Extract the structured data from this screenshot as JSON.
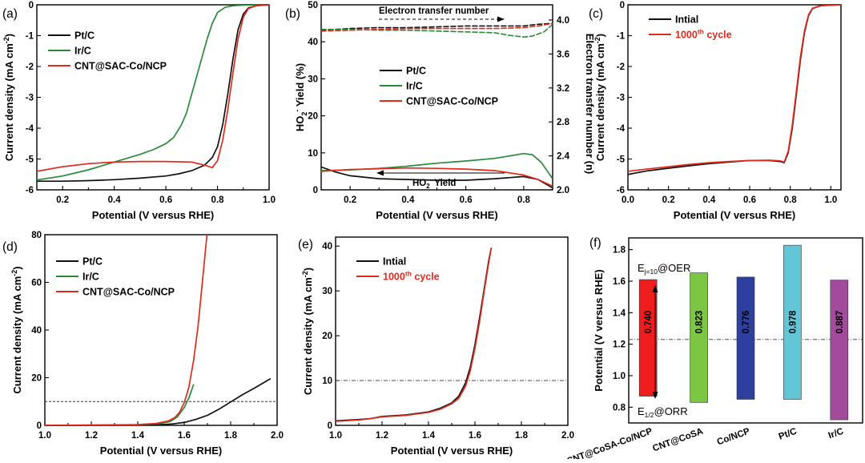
{
  "colors": {
    "pt": "#111111",
    "ir": "#2a8a3a",
    "cnt": "#e02a1e",
    "initial": "#111111",
    "cycle": "#e02a1e",
    "bar_cnt_cosa_conp": "#ef1d1d",
    "bar_cnt_cosa": "#7cc644",
    "bar_co_ncp": "#2f3f9e",
    "bar_pt": "#62c6d6",
    "bar_ir": "#a24a9c"
  },
  "chart_data": [
    {
      "id": "a",
      "panel_label": "(a)",
      "type": "line",
      "xlabel": "Potential (V versus RHE)",
      "ylabel_main": "Current density (mA cm",
      "ylabel_sup": "-2",
      "ylabel_end": ")",
      "xlim": [
        0.1,
        1.0
      ],
      "ylim": [
        -6,
        0
      ],
      "xticks": [
        0.2,
        0.4,
        0.6,
        0.8,
        1.0
      ],
      "xtick_labels": [
        "0.2",
        "0.4",
        "0.6",
        "0.8",
        "1.0"
      ],
      "yticks": [
        0,
        -1,
        -2,
        -3,
        -4,
        -5,
        -6
      ],
      "ytick_labels": [
        "0",
        "-1",
        "-2",
        "-3",
        "-4",
        "-5",
        "-6"
      ],
      "legend": [
        "Pt/C",
        "Ir/C",
        "CNT@SAC-Co/NCP"
      ],
      "series": [
        {
          "name": "Pt/C",
          "color": "pt",
          "x": [
            0.1,
            0.2,
            0.3,
            0.4,
            0.5,
            0.6,
            0.65,
            0.7,
            0.75,
            0.78,
            0.8,
            0.82,
            0.84,
            0.86,
            0.88,
            0.9,
            0.92,
            0.95,
            0.98,
            1.0
          ],
          "y": [
            -5.72,
            -5.72,
            -5.7,
            -5.67,
            -5.62,
            -5.55,
            -5.48,
            -5.38,
            -5.2,
            -4.95,
            -4.6,
            -3.9,
            -2.9,
            -1.75,
            -0.8,
            -0.3,
            -0.1,
            -0.03,
            -0.01,
            0
          ]
        },
        {
          "name": "Ir/C",
          "color": "ir",
          "x": [
            0.1,
            0.2,
            0.3,
            0.4,
            0.5,
            0.55,
            0.6,
            0.63,
            0.66,
            0.68,
            0.7,
            0.72,
            0.74,
            0.76,
            0.78,
            0.8,
            0.83,
            0.86,
            0.9,
            0.95,
            1.0
          ],
          "y": [
            -5.68,
            -5.55,
            -5.35,
            -5.1,
            -4.85,
            -4.7,
            -4.5,
            -4.3,
            -3.9,
            -3.5,
            -2.9,
            -2.3,
            -1.7,
            -1.1,
            -0.6,
            -0.25,
            -0.08,
            -0.03,
            -0.01,
            0,
            0
          ]
        },
        {
          "name": "CNT@SAC-Co/NCP",
          "color": "cnt",
          "x": [
            0.1,
            0.2,
            0.3,
            0.4,
            0.5,
            0.6,
            0.7,
            0.75,
            0.78,
            0.8,
            0.82,
            0.84,
            0.86,
            0.88,
            0.9,
            0.92,
            0.95,
            1.0
          ],
          "y": [
            -5.4,
            -5.25,
            -5.15,
            -5.1,
            -5.08,
            -5.08,
            -5.1,
            -5.2,
            -5.28,
            -5.05,
            -4.4,
            -3.4,
            -2.2,
            -1.1,
            -0.4,
            -0.12,
            -0.03,
            0
          ]
        }
      ]
    },
    {
      "id": "b",
      "panel_label": "(b)",
      "type": "line",
      "xlabel": "Potential (V versus RHE)",
      "ylabel_main": "HO",
      "ylabel_sub": "2",
      "ylabel_sup": "-",
      "ylabel_end": " Yield (%)",
      "y2label": "Electron transfer number (n)",
      "xlim": [
        0.1,
        0.9
      ],
      "ylim": [
        0,
        50
      ],
      "y2lim": [
        2.0,
        4.0
      ],
      "xticks": [
        0.2,
        0.4,
        0.6,
        0.8
      ],
      "xtick_labels": [
        "0.2",
        "0.4",
        "0.6",
        "0.8"
      ],
      "yticks": [
        0,
        10,
        20,
        30,
        40,
        50
      ],
      "ytick_labels": [
        "0",
        "10",
        "20",
        "30",
        "40",
        "50"
      ],
      "y2ticks": [
        2.0,
        2.4,
        2.8,
        3.2,
        3.6,
        4.0
      ],
      "y2tick_labels": [
        "2.0",
        "2.4",
        "2.8",
        "3.2",
        "3.6",
        "4.0"
      ],
      "legend": [
        "Pt/C",
        "Ir/C",
        "CNT@SAC-Co/NCP"
      ],
      "annotation_top": "Electron transfer number",
      "annotation_bottom_main": "HO",
      "annotation_bottom_sub": "2",
      "annotation_bottom_sup": "-",
      "annotation_bottom_end": " Yield",
      "series": [
        {
          "name": "Pt/C yield",
          "color": "pt",
          "axis": "y",
          "x": [
            0.1,
            0.15,
            0.2,
            0.3,
            0.4,
            0.5,
            0.6,
            0.7,
            0.8,
            0.85,
            0.9
          ],
          "y": [
            6.2,
            4.8,
            3.8,
            3.0,
            2.8,
            2.6,
            2.6,
            3.0,
            3.6,
            2.8,
            0.5
          ]
        },
        {
          "name": "Ir/C yield",
          "color": "ir",
          "axis": "y",
          "x": [
            0.1,
            0.2,
            0.3,
            0.4,
            0.5,
            0.6,
            0.7,
            0.8,
            0.83,
            0.86,
            0.9
          ],
          "y": [
            5.2,
            5.4,
            5.8,
            6.4,
            7.2,
            7.8,
            8.5,
            9.8,
            9.5,
            7.5,
            3.0
          ]
        },
        {
          "name": "CNT@SAC-Co/NCP yield",
          "color": "cnt",
          "axis": "y",
          "x": [
            0.1,
            0.2,
            0.3,
            0.4,
            0.5,
            0.6,
            0.7,
            0.8,
            0.85,
            0.9
          ],
          "y": [
            5.0,
            5.5,
            5.7,
            5.9,
            5.8,
            5.6,
            5.2,
            4.0,
            2.8,
            1.0
          ]
        },
        {
          "name": "Pt/C n",
          "color": "pt",
          "axis": "y2",
          "dashed": true,
          "x": [
            0.1,
            0.2,
            0.3,
            0.4,
            0.5,
            0.6,
            0.7,
            0.8,
            0.85,
            0.9
          ],
          "y": [
            3.88,
            3.9,
            3.91,
            3.91,
            3.92,
            3.93,
            3.93,
            3.93,
            3.95,
            3.96
          ]
        },
        {
          "name": "Ir/C n",
          "color": "ir",
          "axis": "y2",
          "dashed": true,
          "x": [
            0.1,
            0.2,
            0.3,
            0.4,
            0.5,
            0.6,
            0.7,
            0.75,
            0.8,
            0.83,
            0.87,
            0.9
          ],
          "y": [
            3.89,
            3.89,
            3.88,
            3.88,
            3.87,
            3.86,
            3.85,
            3.82,
            3.8,
            3.81,
            3.86,
            3.95
          ]
        },
        {
          "name": "CNT@SAC-Co/NCP n",
          "color": "cnt",
          "axis": "y2",
          "dashed": true,
          "x": [
            0.1,
            0.2,
            0.3,
            0.4,
            0.5,
            0.6,
            0.7,
            0.8,
            0.85,
            0.9
          ],
          "y": [
            3.87,
            3.88,
            3.89,
            3.9,
            3.9,
            3.9,
            3.9,
            3.91,
            3.93,
            3.96
          ]
        }
      ]
    },
    {
      "id": "c",
      "panel_label": "(c)",
      "type": "line",
      "xlabel": "Potential (V versus RHE)",
      "ylabel_main": "Current density (mA cm",
      "ylabel_sup": "-2",
      "ylabel_end": ")",
      "xlim": [
        0.0,
        1.05
      ],
      "ylim": [
        -6,
        0
      ],
      "xticks": [
        0.0,
        0.2,
        0.4,
        0.6,
        0.8,
        1.0
      ],
      "xtick_labels": [
        "0.0",
        "0.2",
        "0.4",
        "0.6",
        "0.8",
        "1.0"
      ],
      "yticks": [
        0,
        -1,
        -2,
        -3,
        -4,
        -5,
        -6
      ],
      "ytick_labels": [
        "0",
        "-1",
        "-2",
        "-3",
        "-4",
        "-5",
        "-6"
      ],
      "legend": [
        "Intial",
        "1000th cycle"
      ],
      "legend_sup": "th",
      "series": [
        {
          "name": "Intial",
          "color": "initial",
          "x": [
            0.0,
            0.1,
            0.2,
            0.3,
            0.4,
            0.5,
            0.6,
            0.7,
            0.75,
            0.77,
            0.79,
            0.81,
            0.83,
            0.85,
            0.87,
            0.89,
            0.91,
            0.95,
            1.0,
            1.05
          ],
          "y": [
            -5.5,
            -5.38,
            -5.3,
            -5.22,
            -5.15,
            -5.1,
            -5.05,
            -5.05,
            -5.08,
            -5.12,
            -4.8,
            -4.0,
            -2.9,
            -1.8,
            -0.9,
            -0.35,
            -0.12,
            -0.03,
            -0.01,
            0
          ]
        },
        {
          "name": "1000th cycle",
          "color": "cycle",
          "x": [
            0.0,
            0.1,
            0.2,
            0.3,
            0.4,
            0.5,
            0.6,
            0.7,
            0.75,
            0.77,
            0.79,
            0.81,
            0.83,
            0.85,
            0.87,
            0.89,
            0.91,
            0.95,
            1.0,
            1.05
          ],
          "y": [
            -5.4,
            -5.32,
            -5.25,
            -5.18,
            -5.12,
            -5.08,
            -5.05,
            -5.04,
            -5.06,
            -5.1,
            -4.75,
            -3.9,
            -2.8,
            -1.7,
            -0.85,
            -0.32,
            -0.11,
            -0.03,
            -0.01,
            0
          ]
        }
      ]
    },
    {
      "id": "d",
      "panel_label": "(d)",
      "type": "line",
      "xlabel": "Potential (V versus RHE)",
      "ylabel_main": "Current density (mA cm",
      "ylabel_sup": "-2",
      "ylabel_end": ")",
      "xlim": [
        1.0,
        2.0
      ],
      "ylim": [
        0,
        80
      ],
      "xticks": [
        1.0,
        1.2,
        1.4,
        1.6,
        1.8,
        2.0
      ],
      "xtick_labels": [
        "1.0",
        "1.2",
        "1.4",
        "1.6",
        "1.8",
        "2.0"
      ],
      "yticks": [
        0,
        20,
        40,
        60,
        80
      ],
      "ytick_labels": [
        "0",
        "20",
        "40",
        "60",
        "80"
      ],
      "legend": [
        "Pt/C",
        "Ir/C",
        "CNT@SAC-Co/NCP"
      ],
      "reference_y": 10,
      "series": [
        {
          "name": "Pt/C",
          "color": "pt",
          "x": [
            1.0,
            1.4,
            1.5,
            1.55,
            1.6,
            1.65,
            1.7,
            1.75,
            1.8,
            1.85,
            1.9,
            1.97
          ],
          "y": [
            0,
            0.1,
            0.3,
            0.6,
            1.2,
            2.5,
            4.2,
            6.8,
            9.8,
            12.8,
            15.5,
            19.5
          ]
        },
        {
          "name": "Ir/C",
          "color": "ir",
          "x": [
            1.0,
            1.4,
            1.5,
            1.54,
            1.57,
            1.6,
            1.62,
            1.64
          ],
          "y": [
            0,
            0.3,
            0.8,
            1.6,
            3.5,
            7.5,
            11.5,
            17.0
          ]
        },
        {
          "name": "CNT@SAC-Co/NCP",
          "color": "cnt",
          "x": [
            1.0,
            1.3,
            1.4,
            1.48,
            1.53,
            1.56,
            1.58,
            1.6,
            1.62,
            1.64,
            1.66,
            1.68,
            1.7
          ],
          "y": [
            0,
            0.1,
            0.3,
            0.8,
            1.8,
            3.3,
            5.5,
            9.5,
            16.0,
            27.0,
            42.0,
            62.0,
            82.0
          ]
        }
      ]
    },
    {
      "id": "e",
      "panel_label": "(e)",
      "type": "line",
      "xlabel": "Potential (V versus RHE)",
      "ylabel_main": "Current density (mA cm",
      "ylabel_sup": "-2",
      "ylabel_end": ")",
      "xlim": [
        1.0,
        2.0
      ],
      "ylim": [
        0,
        42
      ],
      "xticks": [
        1.0,
        1.2,
        1.4,
        1.6,
        1.8,
        2.0
      ],
      "xtick_labels": [
        "1.0",
        "1.2",
        "1.4",
        "1.6",
        "1.8",
        "2.0"
      ],
      "yticks": [
        0,
        10,
        20,
        30,
        40
      ],
      "ytick_labels": [
        "0",
        "10",
        "20",
        "30",
        "40"
      ],
      "legend": [
        "Intial",
        "1000th cycle"
      ],
      "legend_sup": "th",
      "reference_y": 10,
      "series": [
        {
          "name": "Intial",
          "color": "initial",
          "x": [
            1.0,
            1.1,
            1.15,
            1.2,
            1.3,
            1.4,
            1.45,
            1.5,
            1.53,
            1.56,
            1.58,
            1.6,
            1.62,
            1.64,
            1.66,
            1.67
          ],
          "y": [
            1.0,
            1.3,
            1.5,
            2.0,
            2.3,
            3.0,
            3.8,
            5.0,
            6.5,
            9.5,
            13.0,
            18.0,
            24.0,
            30.5,
            37.0,
            39.5
          ]
        },
        {
          "name": "1000th cycle",
          "color": "cycle",
          "x": [
            1.0,
            1.1,
            1.15,
            1.2,
            1.3,
            1.4,
            1.45,
            1.5,
            1.53,
            1.56,
            1.58,
            1.6,
            1.62,
            1.64,
            1.66,
            1.67
          ],
          "y": [
            0.9,
            1.2,
            1.5,
            1.9,
            2.2,
            2.9,
            3.6,
            4.8,
            6.0,
            8.8,
            12.2,
            17.2,
            23.2,
            30.0,
            36.5,
            39.5
          ]
        }
      ]
    },
    {
      "id": "f",
      "panel_label": "(f)",
      "type": "bar",
      "ylabel": "Potential (V versus RHE)",
      "ylim": [
        0.7,
        1.9
      ],
      "yticks": [
        0.8,
        1.0,
        1.2,
        1.4,
        1.6,
        1.8
      ],
      "ytick_labels": [
        "0.8",
        "1.0",
        "1.2",
        "1.4",
        "1.6",
        "1.8"
      ],
      "reference_y": 1.23,
      "oer_label_main": "E",
      "oer_label_sub": "j=10",
      "oer_label_end": "@OER",
      "orr_label_main": "E",
      "orr_label_sub": "1/2",
      "orr_label_end": "@ORR",
      "categories": [
        "CNT@CoSA-Co/NCP",
        "CNT@CoSA",
        "Co/NCP",
        "Pt/C",
        "Ir/C"
      ],
      "colors": [
        "bar_cnt_cosa_conp",
        "bar_cnt_cosa",
        "bar_co_ncp",
        "bar_pt",
        "bar_ir"
      ],
      "bottom": [
        0.87,
        0.83,
        0.85,
        0.85,
        0.72
      ],
      "top": [
        1.61,
        1.653,
        1.626,
        1.828,
        1.607
      ],
      "labels": [
        "0.740",
        "0.823",
        "0.776",
        "0.978",
        "0.887"
      ]
    }
  ]
}
